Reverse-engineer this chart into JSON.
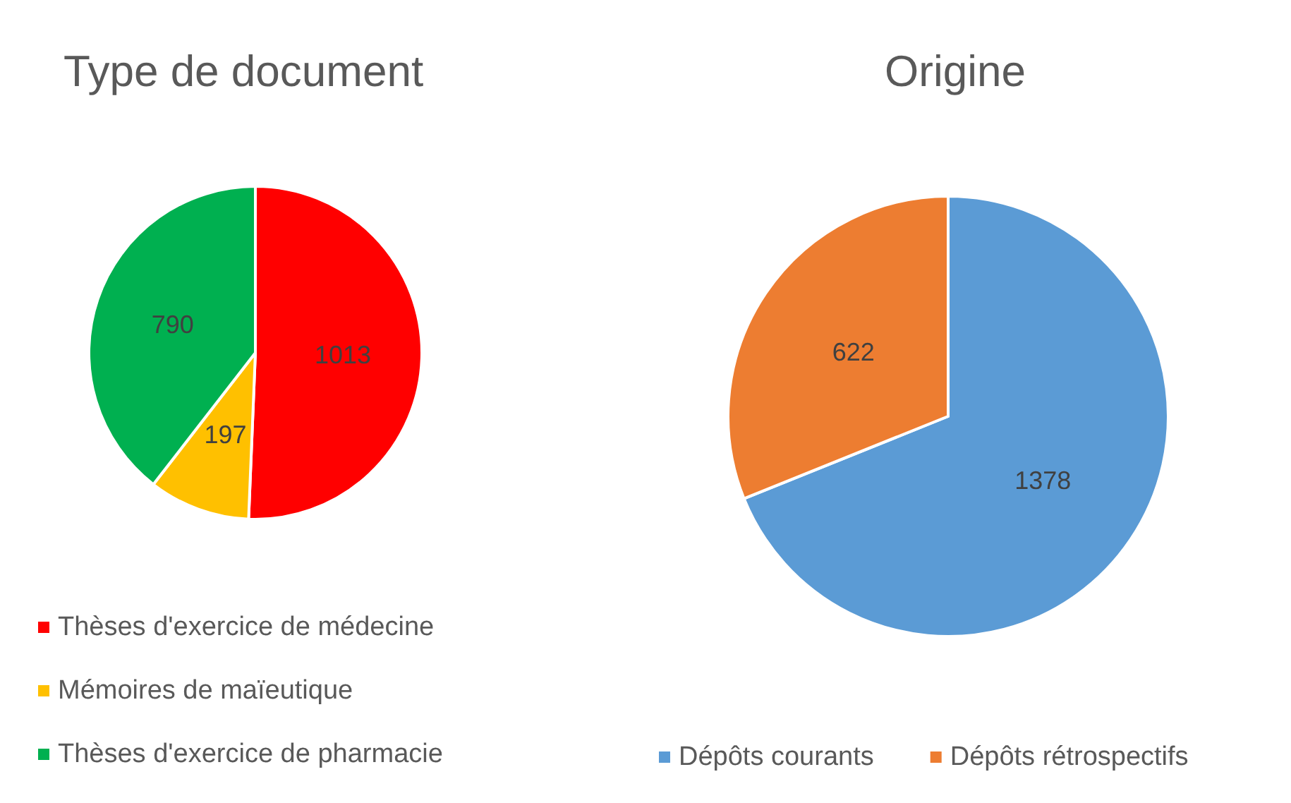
{
  "chart_data": [
    {
      "type": "pie",
      "title": "Type de document",
      "categories": [
        "Thèses d'exercice de médecine",
        "Mémoires de maïeutique",
        "Thèses d'exercice de pharmacie"
      ],
      "values": [
        1013,
        197,
        790
      ],
      "colors": [
        "#ff0000",
        "#ffc000",
        "#00b050"
      ],
      "data_labels": true,
      "legend": "bottom left"
    },
    {
      "type": "pie",
      "title": "Origine",
      "categories": [
        "Dépôts courants",
        "Dépôts rétrospectifs"
      ],
      "values": [
        1378,
        622
      ],
      "colors": [
        "#5b9bd5",
        "#ed7d31"
      ],
      "data_labels": true,
      "legend": "bottom"
    }
  ]
}
